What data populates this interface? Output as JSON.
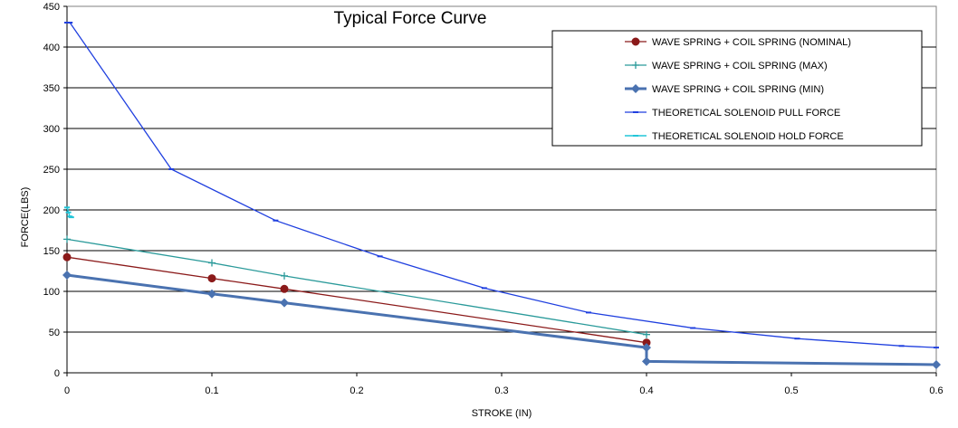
{
  "chart_data": {
    "type": "line",
    "title": "Typical Force Curve",
    "xlabel": "STROKE (IN)",
    "ylabel": "FORCE(LBS)",
    "xlim": [
      0,
      0.6
    ],
    "ylim": [
      0,
      450
    ],
    "x_ticks": [
      "0",
      "0.1",
      "0.2",
      "0.3",
      "0.4",
      "0.5",
      "0.6"
    ],
    "y_ticks": [
      "0",
      "50",
      "100",
      "150",
      "200",
      "250",
      "300",
      "350",
      "400",
      "450"
    ],
    "grid": "horizontal",
    "legend_position": "top-right",
    "series": [
      {
        "name": "WAVE SPRING + COIL SPRING (NOMINAL)",
        "color": "#8b1a1a",
        "marker": "circle",
        "points": [
          [
            0,
            142
          ],
          [
            0.1,
            116
          ],
          [
            0.15,
            103
          ],
          [
            0.4,
            37
          ]
        ]
      },
      {
        "name": "WAVE SPRING + COIL SPRING (MAX)",
        "color": "#2a9a9a",
        "marker": "plus",
        "points": [
          [
            0,
            164
          ],
          [
            0.1,
            135
          ],
          [
            0.15,
            119
          ],
          [
            0.4,
            47
          ]
        ]
      },
      {
        "name": "WAVE SPRING + COIL SPRING (MIN)",
        "color": "#4a72b0",
        "marker": "diamond",
        "points": [
          [
            0,
            120
          ],
          [
            0.1,
            97
          ],
          [
            0.15,
            86
          ],
          [
            0.4,
            31
          ],
          [
            0.4,
            14
          ],
          [
            0.6,
            10
          ]
        ]
      },
      {
        "name": "THEORETICAL SOLENOID PULL FORCE",
        "color": "#1f3fdf",
        "marker": "dash",
        "points": [
          [
            0,
            430
          ],
          [
            0.002,
            430
          ],
          [
            0.072,
            250
          ],
          [
            0.144,
            187
          ],
          [
            0.216,
            143
          ],
          [
            0.288,
            104
          ],
          [
            0.36,
            74
          ],
          [
            0.432,
            55
          ],
          [
            0.504,
            42
          ],
          [
            0.576,
            33
          ],
          [
            0.6,
            31
          ]
        ]
      },
      {
        "name": "THEORETICAL SOLENOID HOLD FORCE",
        "color": "#22c5d8",
        "marker": "dash",
        "points": [
          [
            0,
            203
          ],
          [
            0.001,
            197
          ],
          [
            0.002,
            192
          ],
          [
            0.003,
            191
          ]
        ]
      }
    ]
  }
}
